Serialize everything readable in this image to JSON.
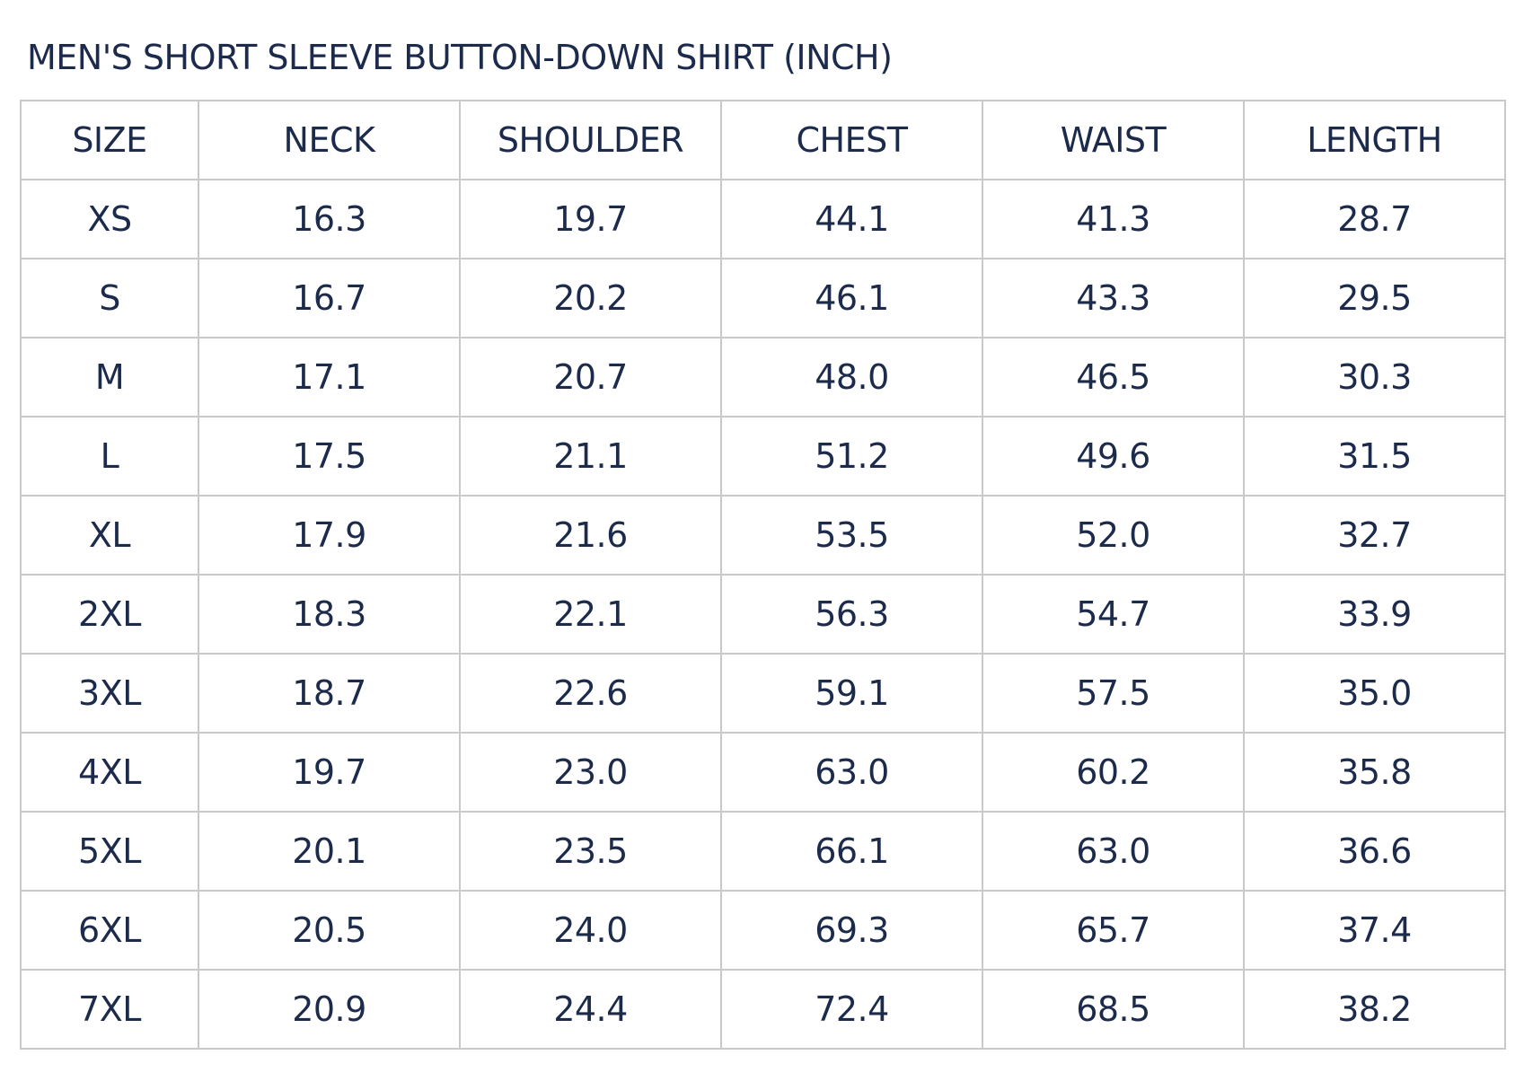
{
  "title": "MEN'S SHORT SLEEVE BUTTON-DOWN SHIRT (INCH)",
  "columns": [
    "SIZE",
    "NECK",
    "SHOULDER",
    "CHEST",
    "WAIST",
    "LENGTH"
  ],
  "rows": [
    [
      "XS",
      "16.3",
      "19.7",
      "44.1",
      "41.3",
      "28.7"
    ],
    [
      "S",
      "16.7",
      "20.2",
      "46.1",
      "43.3",
      "29.5"
    ],
    [
      "M",
      "17.1",
      "20.7",
      "48.0",
      "46.5",
      "30.3"
    ],
    [
      "L",
      "17.5",
      "21.1",
      "51.2",
      "49.6",
      "31.5"
    ],
    [
      "XL",
      "17.9",
      "21.6",
      "53.5",
      "52.0",
      "32.7"
    ],
    [
      "2XL",
      "18.3",
      "22.1",
      "56.3",
      "54.7",
      "33.9"
    ],
    [
      "3XL",
      "18.7",
      "22.6",
      "59.1",
      "57.5",
      "35.0"
    ],
    [
      "4XL",
      "19.7",
      "23.0",
      "63.0",
      "60.2",
      "35.8"
    ],
    [
      "5XL",
      "20.1",
      "23.5",
      "66.1",
      "63.0",
      "36.6"
    ],
    [
      "6XL",
      "20.5",
      "24.0",
      "69.3",
      "65.7",
      "37.4"
    ],
    [
      "7XL",
      "20.9",
      "24.4",
      "72.4",
      "68.5",
      "38.2"
    ]
  ],
  "colors": {
    "text": "#1c2b4b",
    "border": "#c9c9c9"
  }
}
